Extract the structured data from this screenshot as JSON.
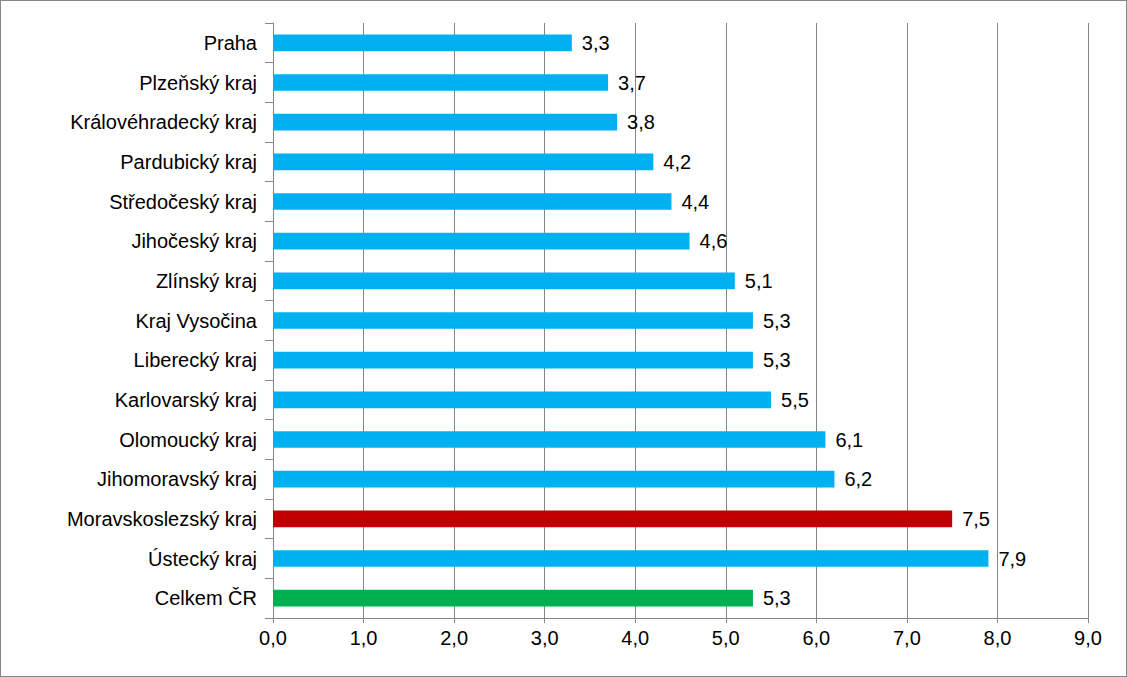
{
  "chart_data": {
    "type": "bar",
    "orientation": "horizontal",
    "categories": [
      "Praha",
      "Plzeňský kraj",
      "Královéhradecký kraj",
      "Pardubický kraj",
      "Středočeský kraj",
      "Jihočeský kraj",
      "Zlínský kraj",
      "Kraj Vysočina",
      "Liberecký kraj",
      "Karlovarský kraj",
      "Olomoucký kraj",
      "Jihomoravský kraj",
      "Moravskoslezský kraj",
      "Ústecký kraj",
      "Celkem ČR"
    ],
    "values": [
      3.3,
      3.7,
      3.8,
      4.2,
      4.4,
      4.6,
      5.1,
      5.3,
      5.3,
      5.5,
      6.1,
      6.2,
      7.5,
      7.9,
      5.3
    ],
    "value_labels": [
      "3,3",
      "3,7",
      "3,8",
      "4,2",
      "4,4",
      "4,6",
      "5,1",
      "5,3",
      "5,3",
      "5,5",
      "6,1",
      "6,2",
      "7,5",
      "7,9",
      "5,3"
    ],
    "colors": [
      "#00b0f0",
      "#00b0f0",
      "#00b0f0",
      "#00b0f0",
      "#00b0f0",
      "#00b0f0",
      "#00b0f0",
      "#00b0f0",
      "#00b0f0",
      "#00b0f0",
      "#00b0f0",
      "#00b0f0",
      "#c00000",
      "#00b0f0",
      "#00b050"
    ],
    "xlim": [
      0,
      9
    ],
    "xticks": [
      {
        "value": 0,
        "label": "0,0"
      },
      {
        "value": 1,
        "label": "1,0"
      },
      {
        "value": 2,
        "label": "2,0"
      },
      {
        "value": 3,
        "label": "3,0"
      },
      {
        "value": 4,
        "label": "4,0"
      },
      {
        "value": 5,
        "label": "5,0"
      },
      {
        "value": 6,
        "label": "6,0"
      },
      {
        "value": 7,
        "label": "7,0"
      },
      {
        "value": 8,
        "label": "8,0"
      },
      {
        "value": 9,
        "label": "9,0"
      }
    ],
    "grid": true,
    "data_labels": true
  }
}
